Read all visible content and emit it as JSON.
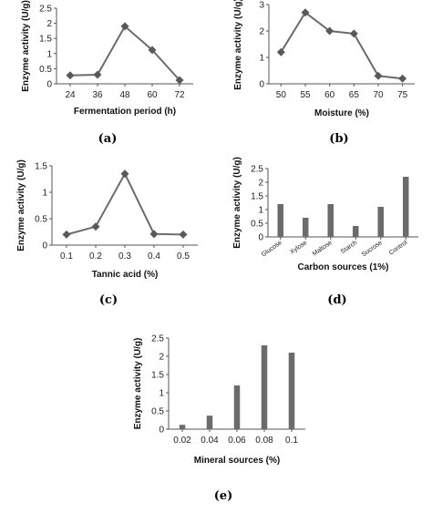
{
  "colors": {
    "series": "#6b6b6b",
    "marker": "#595959",
    "axis": "#555555"
  },
  "panels": [
    {
      "label": "(a)"
    },
    {
      "label": "(b)"
    },
    {
      "label": "(c)"
    },
    {
      "label": "(d)"
    },
    {
      "label": "(e)"
    }
  ],
  "chart_data": [
    {
      "type": "line",
      "marker": "diamond",
      "title": "",
      "xlabel": "Fermentation period (h)",
      "ylabel": "Enzyme activity (U/g)",
      "categories": [
        "24",
        "36",
        "48",
        "60",
        "72"
      ],
      "values": [
        0.28,
        0.3,
        1.9,
        1.12,
        0.12
      ],
      "ylim": [
        0,
        2.5
      ],
      "yticks": [
        "0",
        "0.5",
        "1",
        "1.5",
        "2",
        "2.5"
      ],
      "grid": false,
      "legend": "none"
    },
    {
      "type": "line",
      "marker": "diamond",
      "title": "",
      "xlabel": "Moisture (%)",
      "ylabel": "Enzyme activity (U/g)",
      "categories": [
        "50",
        "55",
        "60",
        "65",
        "70",
        "75"
      ],
      "values": [
        1.2,
        2.7,
        2.0,
        1.9,
        0.3,
        0.2
      ],
      "ylim": [
        0,
        3
      ],
      "yticks": [
        "0",
        "1",
        "2",
        "3"
      ],
      "grid": false,
      "legend": "none"
    },
    {
      "type": "line",
      "marker": "diamond",
      "title": "",
      "xlabel": "Tannic acid (%)",
      "ylabel": "Enzyme activity (U/g)",
      "categories": [
        "0.1",
        "0.2",
        "0.3",
        "0.4",
        "0.5"
      ],
      "values": [
        0.2,
        0.35,
        1.35,
        0.21,
        0.2
      ],
      "ylim": [
        0,
        1.5
      ],
      "yticks": [
        "0",
        "0.5",
        "1",
        "1.5"
      ],
      "grid": false,
      "legend": "none"
    },
    {
      "type": "bar",
      "title": "",
      "xlabel": "Carbon sources (1%)",
      "ylabel": "Enzyme activity (U/g)",
      "categories": [
        "Glucose",
        "Xylose",
        "Maltose",
        "Starch",
        "Sucrose",
        "Control"
      ],
      "values": [
        1.2,
        0.7,
        1.2,
        0.4,
        1.1,
        2.2
      ],
      "ylim": [
        0,
        2.5
      ],
      "yticks": [
        "0",
        "0.5",
        "1",
        "1.5",
        "2",
        "2.5"
      ],
      "grid": false,
      "legend": "none"
    },
    {
      "type": "bar",
      "title": "",
      "xlabel": "Mineral sources (%)",
      "ylabel": "Enzyme activity (U/g)",
      "categories": [
        "0.02",
        "0.04",
        "0.06",
        "0.08",
        "0.1"
      ],
      "values": [
        0.12,
        0.37,
        1.2,
        2.3,
        2.1
      ],
      "ylim": [
        0,
        2.5
      ],
      "yticks": [
        "0",
        "0.5",
        "1",
        "1.5",
        "2",
        "2.5"
      ],
      "grid": false,
      "legend": "none"
    }
  ]
}
